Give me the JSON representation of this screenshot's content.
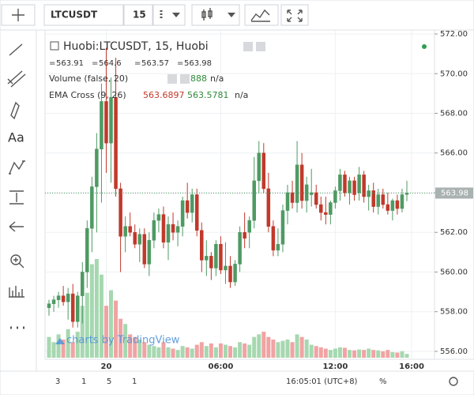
{
  "ui": {
    "symbol": "LTCUSDT",
    "interval": "15",
    "ranges": [
      "3",
      "1",
      "5",
      "1"
    ],
    "clock": "16:05:01 (UTC+8)",
    "percent": "%",
    "watermark": "charts by TradingView"
  },
  "chart_data": {
    "type": "candlestick",
    "title": "Huobi:LTCUSDT, 15, Huobi",
    "indicators": [
      {
        "name": "Volume (false, 20)",
        "values": [
          "888",
          "n/a"
        ]
      },
      {
        "name": "EMA Cross (9, 26)",
        "values": [
          "563.6897",
          "563.5781",
          "n/a"
        ]
      }
    ],
    "up_color": "#4e9a63",
    "down_color": "#c0392b",
    "volume_up_color": "#a6d8b0",
    "volume_down_color": "#f1a3a3",
    "open": [
      558.2,
      558.4,
      558.6,
      558.8,
      558.5,
      558.9,
      557.5,
      558.8,
      560.0,
      562.2,
      564.3,
      566.2,
      568.6,
      566.5,
      568.8,
      564.2,
      561.8,
      562.3,
      562.0,
      561.4,
      561.9,
      560.4,
      561.6,
      562.6,
      562.9,
      561.5,
      562.4,
      562.0,
      562.3,
      563.6,
      563.0,
      563.9,
      562.1,
      560.6,
      560.8,
      560.2,
      561.4,
      560.1,
      560.3,
      559.5,
      560.4,
      562.0,
      562.0,
      562.6,
      564.6,
      566.0,
      564.2,
      562.3,
      561.1,
      561.4,
      563.1,
      564.0,
      563.5,
      565.4,
      563.6,
      563.9,
      564.0,
      563.4,
      563.0,
      562.9,
      563.5,
      564.1,
      564.9,
      564.0,
      564.6,
      564.0,
      564.9,
      563.8,
      564.1,
      563.3,
      563.9,
      563.4,
      563.1,
      563.6,
      563.2,
      563.91
    ],
    "high": [
      558.6,
      558.8,
      559.0,
      559.3,
      559.2,
      559.4,
      559.0,
      560.5,
      562.6,
      564.8,
      567.0,
      569.5,
      571.3,
      569.8,
      570.8,
      564.5,
      562.8,
      563.0,
      562.4,
      562.2,
      562.2,
      562.0,
      563.0,
      563.2,
      563.3,
      562.8,
      563.0,
      562.6,
      563.8,
      564.5,
      564.2,
      564.2,
      562.5,
      561.6,
      561.0,
      561.6,
      561.8,
      561.5,
      560.8,
      560.6,
      562.3,
      563.0,
      562.8,
      565.8,
      566.6,
      566.5,
      565.0,
      562.6,
      562.2,
      563.4,
      564.4,
      564.6,
      566.6,
      566.0,
      564.8,
      565.2,
      564.4,
      563.8,
      563.8,
      563.6,
      564.3,
      565.2,
      565.1,
      564.8,
      564.8,
      565.3,
      565.1,
      564.4,
      564.5,
      564.2,
      564.2,
      564.0,
      563.7,
      563.9,
      564.2,
      564.6
    ],
    "low": [
      557.8,
      558.0,
      558.2,
      558.3,
      557.6,
      557.2,
      557.2,
      557.4,
      559.2,
      561.0,
      562.0,
      563.5,
      565.0,
      564.5,
      563.8,
      560.0,
      561.0,
      561.8,
      561.2,
      560.5,
      560.2,
      559.8,
      561.2,
      562.0,
      561.2,
      560.6,
      561.6,
      561.3,
      561.8,
      562.7,
      562.5,
      561.8,
      560.0,
      559.8,
      559.6,
      559.8,
      559.9,
      559.4,
      559.2,
      559.3,
      560.0,
      561.2,
      561.2,
      562.2,
      564.0,
      564.0,
      562.0,
      560.8,
      560.8,
      561.0,
      562.4,
      563.2,
      563.0,
      563.2,
      563.0,
      563.3,
      563.2,
      562.6,
      562.4,
      562.4,
      563.2,
      563.6,
      563.8,
      563.4,
      563.6,
      563.6,
      563.5,
      563.1,
      563.0,
      562.9,
      563.2,
      562.9,
      562.6,
      562.9,
      563.0,
      563.57
    ],
    "close": [
      558.4,
      558.6,
      558.8,
      558.5,
      558.9,
      557.5,
      558.8,
      560.0,
      562.2,
      564.3,
      566.2,
      568.6,
      566.5,
      568.8,
      564.2,
      561.8,
      562.3,
      562.0,
      561.4,
      561.9,
      560.4,
      561.6,
      562.6,
      562.9,
      561.5,
      562.4,
      562.0,
      562.3,
      563.6,
      563.0,
      563.9,
      562.1,
      560.6,
      560.8,
      560.2,
      561.4,
      560.1,
      560.3,
      559.5,
      560.4,
      562.0,
      561.7,
      562.6,
      564.6,
      566.0,
      564.2,
      562.3,
      561.1,
      561.4,
      563.1,
      564.0,
      563.5,
      565.4,
      563.6,
      564.4,
      564.0,
      563.4,
      563.0,
      562.9,
      563.5,
      564.1,
      564.9,
      564.0,
      564.6,
      563.9,
      564.9,
      563.8,
      564.1,
      563.3,
      563.9,
      563.4,
      563.1,
      563.6,
      563.2,
      563.9,
      563.98
    ],
    "volume": [
      4800,
      3600,
      5400,
      4200,
      6600,
      3600,
      6000,
      12000,
      15000,
      21600,
      22800,
      19200,
      12000,
      15600,
      13200,
      9000,
      7800,
      5400,
      4800,
      4200,
      3600,
      3000,
      2700,
      2400,
      3600,
      2400,
      2100,
      1800,
      2700,
      2400,
      2100,
      3000,
      3600,
      2700,
      3300,
      2400,
      3300,
      3000,
      2700,
      2400,
      3600,
      3300,
      3000,
      4800,
      5400,
      6000,
      4800,
      4200,
      3600,
      3900,
      4200,
      3600,
      5400,
      4800,
      4200,
      3000,
      2700,
      2400,
      2100,
      1800,
      2100,
      2400,
      2300,
      1800,
      1700,
      1900,
      1800,
      2100,
      1800,
      1700,
      1500,
      1800,
      1300,
      1200,
      1500,
      888
    ],
    "ylim": [
      555.6,
      572.2
    ],
    "yticks": [
      {
        "value": 556,
        "label": "556.00"
      },
      {
        "value": 558,
        "label": "558.00"
      },
      {
        "value": 560,
        "label": "560.00"
      },
      {
        "value": 562,
        "label": "562.00"
      },
      {
        "value": 564,
        "label": "564.00"
      },
      {
        "value": 566,
        "label": "566.00"
      },
      {
        "value": 568,
        "label": "568.00"
      },
      {
        "value": 570,
        "label": "570.00"
      },
      {
        "value": 572,
        "label": "572.00"
      }
    ],
    "xticks": [
      {
        "value": 12,
        "label": "20"
      },
      {
        "value": 36,
        "label": "06:00"
      },
      {
        "value": 60,
        "label": "12:00"
      },
      {
        "value": 76,
        "label": "16:00"
      }
    ],
    "grid": true
  }
}
